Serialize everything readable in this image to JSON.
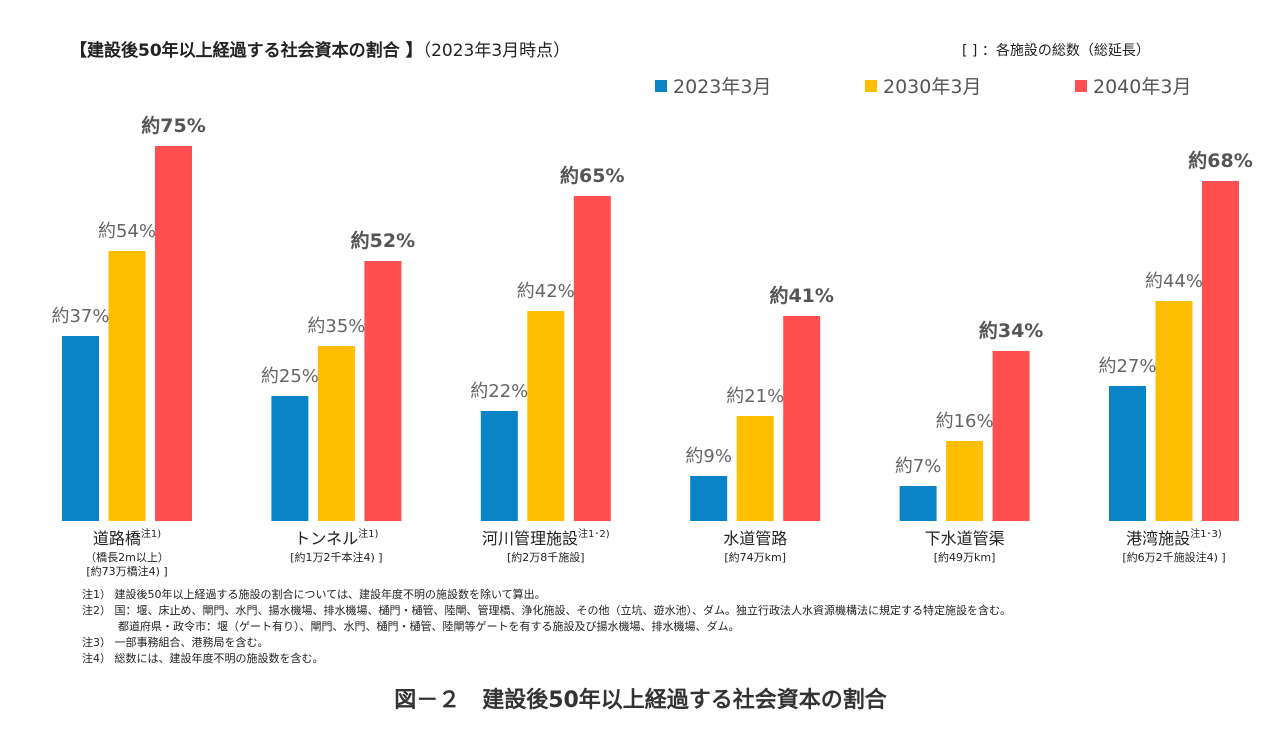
{
  "title": "【建設後50年以上経過する社会資本の割合 】",
  "title_sub": "（2023年3月時点）",
  "top_note": "[ ] ：各施設の総数（総延長）",
  "figure_caption": "図－２　建設後50年以上経過する社会資本の割合",
  "notes": [
    "注1）  建設後50年以上経過する施設の割合については、建設年度不明の施設数を除いて算出。",
    "注2）  国：堰、床止め、閘門、水門、揚水機場、排水機場、樋門・樋管、陸閘、管理橋、浄化施設、その他（立坑、遊水池）、ダム。独立行政法人水資源機構法に規定する特定施設を含む。",
    "都道府県・政令市：堰（ゲート有り）、閘門、水門、樋門・樋管、陸閘等ゲートを有する施設及び揚水機場、排水機場、ダム。",
    "注3）  一部事務組合、港務局を含む。",
    "注4）  総数には、建設年度不明の施設数を含む。"
  ],
  "chart_data": {
    "type": "bar",
    "title": "建設後50年以上経過する社会資本の割合",
    "ylim": [
      0,
      80
    ],
    "grid": false,
    "legend_position": "top-right",
    "value_label_prefix": "約",
    "value_label_suffix": "%",
    "categories": [
      {
        "name": "道路橋",
        "note": "注1)",
        "sub": [
          "（橋長2m以上）",
          "[約73万橋注4) ]"
        ]
      },
      {
        "name": "トンネル",
        "note": "注1)",
        "sub": [
          "[約1万2千本注4) ]"
        ]
      },
      {
        "name": "河川管理施設",
        "note": "注1･2)",
        "sub": [
          "[約2万8千施設]"
        ]
      },
      {
        "name": "水道管路",
        "note": "",
        "sub": [
          "[約74万km]"
        ]
      },
      {
        "name": "下水道管渠",
        "note": "",
        "sub": [
          "[約49万km]"
        ]
      },
      {
        "name": "港湾施設",
        "note": "注1･3)",
        "sub": [
          "[約6万2千施設注4) ]"
        ]
      }
    ],
    "series": [
      {
        "name": "2023年3月",
        "color": "#0A84C6",
        "values": [
          37,
          25,
          22,
          9,
          7,
          27
        ]
      },
      {
        "name": "2030年3月",
        "color": "#FFBE00",
        "values": [
          54,
          35,
          42,
          21,
          16,
          44
        ]
      },
      {
        "name": "2040年3月",
        "color": "#FF4F50",
        "values": [
          75,
          52,
          65,
          41,
          34,
          68
        ]
      }
    ]
  }
}
